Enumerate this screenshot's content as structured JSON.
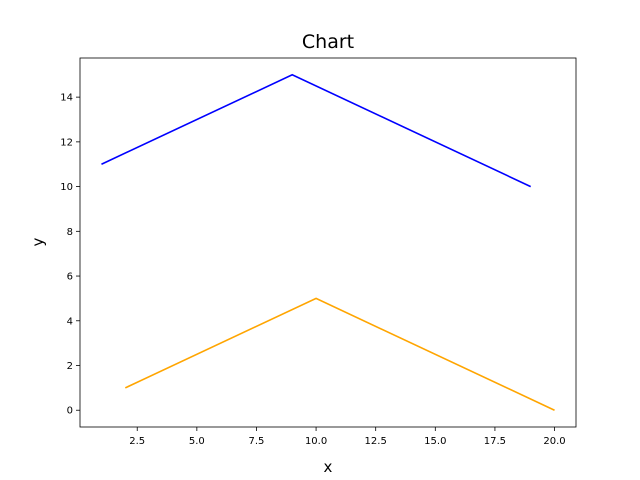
{
  "chart_data": {
    "type": "line",
    "title": "Chart",
    "xlabel": "x",
    "ylabel": "y",
    "xlim": [
      0.1,
      20.9
    ],
    "ylim": [
      -0.75,
      15.75
    ],
    "x_ticks": [
      2.5,
      5.0,
      7.5,
      10.0,
      12.5,
      15.0,
      17.5,
      20.0
    ],
    "x_tick_labels": [
      "2.5",
      "5.0",
      "7.5",
      "10.0",
      "12.5",
      "15.0",
      "17.5",
      "20.0"
    ],
    "y_ticks": [
      0,
      2,
      4,
      6,
      8,
      10,
      12,
      14
    ],
    "y_tick_labels": [
      "0",
      "2",
      "4",
      "6",
      "8",
      "10",
      "12",
      "14"
    ],
    "grid": false,
    "legend": false,
    "series": [
      {
        "color": "#0000ff",
        "x": [
          1,
          9,
          19
        ],
        "y": [
          11,
          15,
          10
        ]
      },
      {
        "color": "#ffa500",
        "x": [
          2,
          10,
          20
        ],
        "y": [
          1,
          5,
          0
        ]
      }
    ]
  }
}
